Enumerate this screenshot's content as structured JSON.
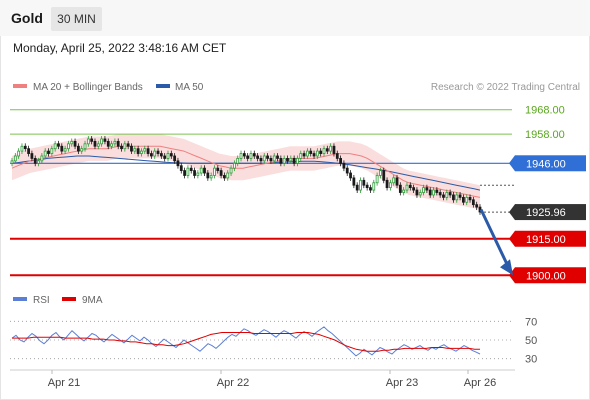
{
  "header": {
    "title": "Gold",
    "timeframe": "30 MIN"
  },
  "datetime": "Monday, April 25, 2022 3:48:16 AM CET",
  "legend": {
    "ma20": {
      "label": "MA 20 + Bollinger Bands",
      "color": "#f08080"
    },
    "ma50": {
      "label": "MA 50",
      "color": "#2b5aa8"
    },
    "copyright": "Research © 2022 Trading Central",
    "rsi": {
      "label": "RSI",
      "color": "#5b7fd6"
    },
    "ma9": {
      "label": "9MA",
      "color": "#e00000"
    }
  },
  "chart_data": [
    {
      "type": "candlestick",
      "x_tick_labels": [
        "Apr 21",
        "Apr 22",
        "Apr 23",
        "Apr 26"
      ],
      "ylim": [
        1896,
        1972
      ],
      "current_price": {
        "value": 1925.96,
        "label": "1925.96",
        "color": "#333333"
      },
      "levels": [
        {
          "value": 1968.0,
          "label": "1968.00",
          "kind": "resistance",
          "color": "#7cc24d"
        },
        {
          "value": 1958.0,
          "label": "1958.00",
          "kind": "resistance",
          "color": "#7cc24d"
        },
        {
          "value": 1946.0,
          "label": "1946.00",
          "kind": "pivot",
          "color": "#2f6fd6"
        },
        {
          "value": 1915.0,
          "label": "1915.00",
          "kind": "support",
          "color": "#e00000"
        },
        {
          "value": 1900.0,
          "label": "1900.00",
          "kind": "support",
          "color": "#e00000"
        }
      ],
      "projection": {
        "from": 1927,
        "to": 1900,
        "color": "#2b5aa8"
      },
      "close": [
        1947,
        1949,
        1951,
        1953,
        1952,
        1950,
        1948,
        1946,
        1947,
        1949,
        1951,
        1950,
        1952,
        1954,
        1953,
        1951,
        1952,
        1954,
        1955,
        1953,
        1951,
        1952,
        1954,
        1956,
        1955,
        1953,
        1954,
        1956,
        1955,
        1953,
        1954,
        1955,
        1953,
        1952,
        1954,
        1953,
        1951,
        1952,
        1950,
        1951,
        1952,
        1950,
        1949,
        1951,
        1950,
        1949,
        1948,
        1950,
        1949,
        1947,
        1945,
        1943,
        1941,
        1944,
        1943,
        1941,
        1942,
        1944,
        1942,
        1940,
        1941,
        1944,
        1943,
        1941,
        1940,
        1942,
        1944,
        1946,
        1948,
        1950,
        1949,
        1948,
        1950,
        1949,
        1948,
        1947,
        1949,
        1948,
        1947,
        1949,
        1948,
        1946,
        1948,
        1947,
        1948,
        1946,
        1948,
        1950,
        1949,
        1951,
        1950,
        1949,
        1951,
        1950,
        1952,
        1951,
        1953,
        1950,
        1948,
        1946,
        1944,
        1942,
        1940,
        1937,
        1935,
        1939,
        1937,
        1936,
        1935,
        1938,
        1941,
        1943,
        1939,
        1936,
        1938,
        1940,
        1937,
        1934,
        1935,
        1937,
        1936,
        1935,
        1933,
        1934,
        1936,
        1935,
        1933,
        1935,
        1934,
        1933,
        1932,
        1934,
        1933,
        1931,
        1933,
        1932,
        1930,
        1932,
        1931,
        1929,
        1928,
        1926
      ],
      "ma20": [
        1944,
        1945,
        1946,
        1947,
        1947.5,
        1948,
        1948.5,
        1949,
        1949.5,
        1950,
        1950.5,
        1951,
        1951.5,
        1952,
        1952,
        1952,
        1952,
        1952.5,
        1953,
        1953,
        1953,
        1953,
        1953,
        1953,
        1953,
        1953,
        1952.5,
        1952,
        1951.5,
        1951,
        1950,
        1949,
        1948,
        1947,
        1946,
        1945,
        1944.5,
        1944,
        1944,
        1944,
        1944.5,
        1945,
        1945.5,
        1946,
        1946.5,
        1947,
        1947.5,
        1948,
        1948,
        1948,
        1948,
        1948,
        1948.5,
        1949,
        1949.5,
        1950,
        1950,
        1950,
        1949.5,
        1949,
        1948,
        1946.5,
        1945,
        1943.5,
        1942,
        1940.5,
        1939,
        1938,
        1937.5,
        1937,
        1936.5,
        1936,
        1935.5,
        1935,
        1934.5,
        1934,
        1933.5,
        1933,
        1932.5,
        1932
      ],
      "ma50": [
        1946,
        1946.3,
        1946.6,
        1947,
        1947.3,
        1947.6,
        1948,
        1948.2,
        1948.4,
        1948.6,
        1948.8,
        1949,
        1949,
        1949,
        1948.8,
        1948.6,
        1948.4,
        1948.2,
        1948,
        1947.8,
        1947.6,
        1947.4,
        1947.2,
        1947,
        1946.8,
        1946.6,
        1946.4,
        1946.3,
        1946.2,
        1946.1,
        1946,
        1946,
        1946,
        1946,
        1946,
        1946,
        1946,
        1946,
        1946,
        1946,
        1946,
        1946,
        1946,
        1946,
        1946.2,
        1946.4,
        1946.5,
        1946.6,
        1946.7,
        1946.8,
        1946.8,
        1946.8,
        1946.7,
        1946.5,
        1946.3,
        1946,
        1945.7,
        1945.4,
        1945,
        1944.6,
        1944.2,
        1943.8,
        1943.4,
        1943,
        1942.5,
        1942,
        1941.5,
        1941,
        1940.5,
        1940,
        1939.5,
        1939,
        1938.5,
        1938,
        1937.5,
        1937,
        1936.5,
        1936,
        1935.5,
        1935
      ],
      "bb_width": 5
    },
    {
      "type": "line",
      "title": "RSI",
      "y_tick_labels": [
        "70",
        "50",
        "30"
      ],
      "ylim": [
        20,
        80
      ],
      "rsi": [
        52,
        55,
        50,
        48,
        53,
        57,
        54,
        49,
        46,
        50,
        55,
        58,
        53,
        50,
        55,
        60,
        56,
        52,
        49,
        53,
        57,
        55,
        51,
        48,
        52,
        56,
        53,
        50,
        47,
        51,
        55,
        52,
        49,
        53,
        50,
        46,
        43,
        47,
        51,
        48,
        45,
        42,
        46,
        50,
        47,
        44,
        41,
        38,
        42,
        46,
        44,
        41,
        45,
        49,
        53,
        56,
        54,
        58,
        62,
        60,
        57,
        55,
        58,
        61,
        59,
        56,
        53,
        57,
        60,
        58,
        55,
        52,
        56,
        59,
        57,
        54,
        58,
        61,
        64,
        60,
        57,
        53,
        49,
        45,
        41,
        37,
        33,
        36,
        40,
        37,
        34,
        38,
        42,
        40,
        37,
        35,
        39,
        42,
        45,
        43,
        40,
        42,
        44,
        41,
        39,
        42,
        40,
        43,
        45,
        42,
        40,
        38,
        41,
        44,
        42,
        39,
        37,
        35
      ],
      "ma9": [
        52,
        52,
        52,
        52,
        53,
        53,
        53,
        53,
        53,
        53,
        52,
        52,
        52,
        52,
        52,
        51,
        51,
        51,
        50,
        50,
        49,
        49,
        48,
        48,
        47,
        46,
        46,
        45,
        45,
        44,
        44,
        45,
        46,
        48,
        50,
        52,
        54,
        56,
        57,
        58,
        58,
        58,
        58,
        58,
        58,
        57,
        57,
        57,
        57,
        57,
        57,
        57,
        57,
        58,
        58,
        58,
        57,
        56,
        54,
        52,
        50,
        47,
        44,
        42,
        40,
        39,
        38,
        38,
        38,
        39,
        39,
        40,
        40,
        41,
        41,
        41,
        41,
        41,
        42,
        42,
        42,
        41,
        41,
        41,
        41,
        41,
        40,
        40
      ]
    }
  ]
}
